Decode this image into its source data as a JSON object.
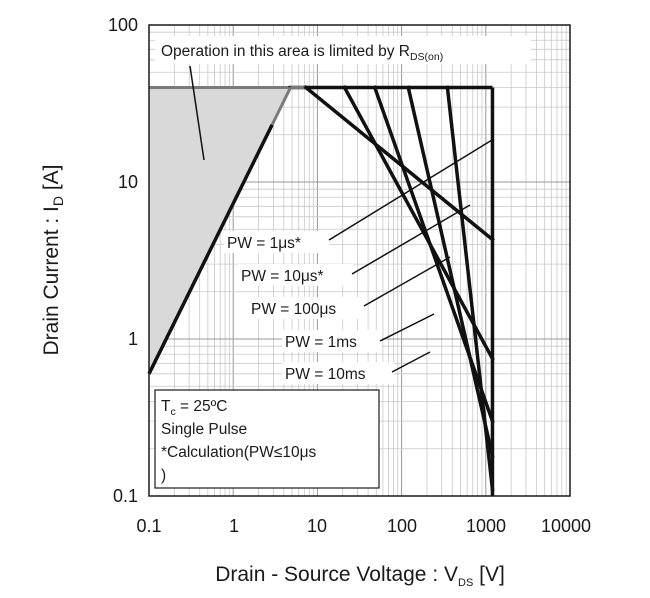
{
  "chart_data": {
    "type": "line",
    "log_x": true,
    "log_y": true,
    "xlim": [
      0.1,
      10000
    ],
    "ylim": [
      0.1,
      100
    ],
    "grid": true,
    "x_ticks": [
      "0.1",
      "1",
      "10",
      "100",
      "1000",
      "10000"
    ],
    "y_ticks": [
      "100",
      "10",
      "1",
      "0.1"
    ],
    "xlabel": {
      "main": "Drain - Source Voltage : V",
      "sub": "DS",
      "unit": " [V]"
    },
    "ylabel": {
      "main": "Drain Current : I",
      "sub": "D",
      "unit": " [A]"
    },
    "rds_annotation": {
      "main": "Operation in this area is limited by R",
      "sub": "DS(on)"
    },
    "conditions": {
      "line1_main": "T",
      "line1_sub": "c",
      "line1_rest": " = 25ºC",
      "line2": "Single Pulse",
      "line3": "*Calculation(PW≤10μs",
      "line4": ")"
    },
    "current_limit_A": 40,
    "voltage_limit_V": 1200,
    "rds_limit": {
      "x": [
        0.1,
        4.8
      ],
      "y": [
        0.6,
        40
      ]
    },
    "series": [
      {
        "label": "PW = 1μs*",
        "x": [
          7.3,
          1200
        ],
        "y": [
          40,
          4.3
        ]
      },
      {
        "label": "PW = 10μs*",
        "x": [
          21,
          1200
        ],
        "y": [
          40,
          0.75
        ]
      },
      {
        "label": "PW = 100μs",
        "x": [
          48,
          1200
        ],
        "y": [
          40,
          0.3
        ]
      },
      {
        "label": "PW = 1ms",
        "x": [
          120,
          1200
        ],
        "y": [
          40,
          0.18
        ]
      },
      {
        "label": "PW = 10ms",
        "x": [
          350,
          1200
        ],
        "y": [
          40,
          0.11
        ]
      }
    ],
    "colors": {
      "line": "#111111",
      "rds_line": "#7a7a7a",
      "shade": "#d9d9d9",
      "grid": "#c8c8c8"
    }
  }
}
